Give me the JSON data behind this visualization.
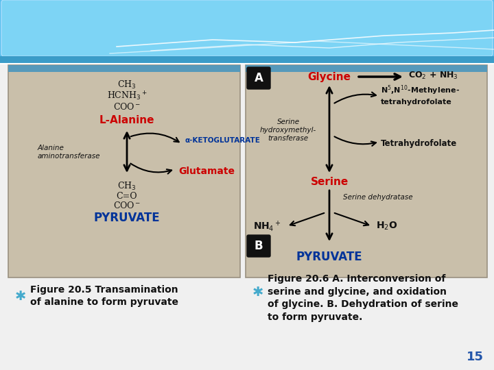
{
  "bg_color": "#f0f0f0",
  "header_bg": "#5bbfee",
  "header_inner": "#7dd4f5",
  "header_dark_bar": "#4499cc",
  "panel_bg": "#c9bfaa",
  "panel_border": "#999080",
  "panel_top_strip": "#5599bb",
  "left_caption": "Figure 20.5 Transamination\nof alanine to form pyruvate",
  "right_caption": "Figure 20.6 A. Interconversion of\nserine and glycine, and oxidation\nof glycine. B. Dehydration of serine\nto form pyruvate.",
  "bullet_color": "#44aacc",
  "caption_color": "#111111",
  "page_number": "15",
  "page_number_color": "#2255aa",
  "red_color": "#cc0000",
  "blue_color": "#003399",
  "black_color": "#111111"
}
